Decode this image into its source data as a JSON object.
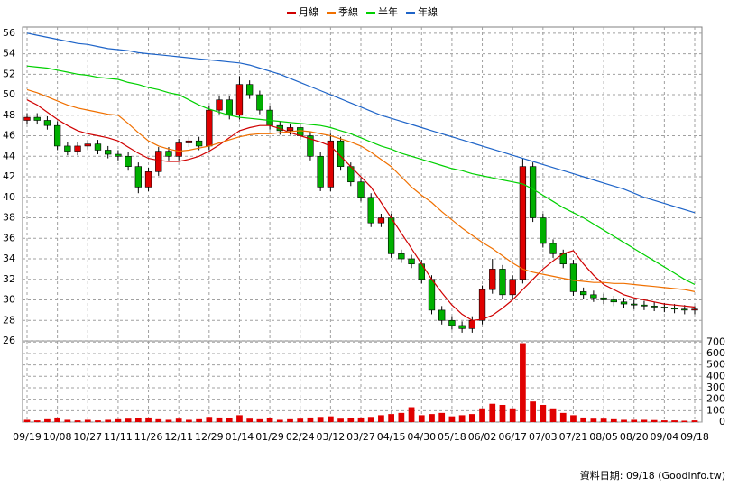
{
  "chart_data": {
    "type": "candlestick",
    "categories": [
      "09/19",
      null,
      null,
      "10/08",
      null,
      null,
      "10/27",
      null,
      null,
      "11/11",
      null,
      null,
      "11/26",
      null,
      null,
      "12/11",
      null,
      null,
      "12/29",
      null,
      null,
      "01/14",
      null,
      null,
      "01/29",
      null,
      null,
      "02/24",
      null,
      null,
      "03/12",
      null,
      null,
      "03/27",
      null,
      null,
      "04/15",
      null,
      null,
      "04/30",
      null,
      null,
      "05/18",
      null,
      null,
      "06/02",
      null,
      null,
      "06/17",
      null,
      null,
      "07/03",
      null,
      null,
      "07/21",
      null,
      null,
      "08/05",
      null,
      null,
      "08/20",
      null,
      null,
      "09/04",
      null,
      null,
      "09/18"
    ],
    "open": [
      47.5,
      47.8,
      47.5,
      47.0,
      45.0,
      44.5,
      45.0,
      45.2,
      44.6,
      44.2,
      44.0,
      43.0,
      41.0,
      42.5,
      44.5,
      44.0,
      45.3,
      45.5,
      45.0,
      48.5,
      49.5,
      48.0,
      51.0,
      50.0,
      48.5,
      47.0,
      46.5,
      46.8,
      46.0,
      44.0,
      41.0,
      45.5,
      43.0,
      41.5,
      40.0,
      37.5,
      38.0,
      34.5,
      34.0,
      33.5,
      32.0,
      29.0,
      28.0,
      27.5,
      27.2,
      28.0,
      31.0,
      33.0,
      30.5,
      32.0,
      43.0,
      38.0,
      35.5,
      34.5,
      33.5,
      30.8,
      30.5,
      30.2,
      30.0,
      29.8,
      29.6,
      29.5,
      29.4,
      29.3,
      29.2,
      29.1,
      29.0
    ],
    "high": [
      48.2,
      48.2,
      47.9,
      47.4,
      45.4,
      45.4,
      45.6,
      45.6,
      45.0,
      44.6,
      44.4,
      43.4,
      42.9,
      44.9,
      44.9,
      45.7,
      45.9,
      45.9,
      48.9,
      49.9,
      49.9,
      51.8,
      51.4,
      50.4,
      48.9,
      47.4,
      47.2,
      47.2,
      46.4,
      44.4,
      46.2,
      45.9,
      43.4,
      41.9,
      40.4,
      38.4,
      38.4,
      34.9,
      34.4,
      33.9,
      32.4,
      29.4,
      28.4,
      27.9,
      28.4,
      31.4,
      34.0,
      33.4,
      32.4,
      43.8,
      43.4,
      38.4,
      35.9,
      34.9,
      33.9,
      31.2,
      30.9,
      30.6,
      30.4,
      30.2,
      30.0,
      29.9,
      29.8,
      29.7,
      29.6,
      29.5,
      29.4
    ],
    "low": [
      47.1,
      47.1,
      46.6,
      44.6,
      44.1,
      44.1,
      44.6,
      44.2,
      43.8,
      43.6,
      42.6,
      40.4,
      40.6,
      42.1,
      43.6,
      43.6,
      44.9,
      44.6,
      44.6,
      48.1,
      47.6,
      47.6,
      49.6,
      48.1,
      46.6,
      46.1,
      46.1,
      45.6,
      43.6,
      40.6,
      40.6,
      42.6,
      41.1,
      39.6,
      37.1,
      37.1,
      34.1,
      33.6,
      33.1,
      31.6,
      28.6,
      27.6,
      27.1,
      26.8,
      26.8,
      27.6,
      30.6,
      30.1,
      30.1,
      31.6,
      37.6,
      35.1,
      34.1,
      33.1,
      30.4,
      30.1,
      29.8,
      29.6,
      29.4,
      29.2,
      29.1,
      29.0,
      28.9,
      28.8,
      28.7,
      28.6,
      28.6
    ],
    "close": [
      47.8,
      47.5,
      47.0,
      45.0,
      44.5,
      45.0,
      45.2,
      44.6,
      44.2,
      44.0,
      43.0,
      41.0,
      42.5,
      44.5,
      44.0,
      45.3,
      45.5,
      45.0,
      48.5,
      49.5,
      48.0,
      51.0,
      50.0,
      48.5,
      47.0,
      46.5,
      46.8,
      46.0,
      44.0,
      41.0,
      45.5,
      43.0,
      41.5,
      40.0,
      37.5,
      38.0,
      34.5,
      34.0,
      33.5,
      32.0,
      29.0,
      28.0,
      27.5,
      27.2,
      28.0,
      31.0,
      33.0,
      30.5,
      32.0,
      43.0,
      38.0,
      35.5,
      34.5,
      33.5,
      30.8,
      30.5,
      30.2,
      30.0,
      29.8,
      29.6,
      29.5,
      29.4,
      29.3,
      29.2,
      29.1,
      29.0,
      29.1
    ],
    "up_color": "#e00000",
    "down_color": "#00b000",
    "series": [
      {
        "name": "月線",
        "color": "#d00000",
        "values": [
          49.5,
          49.0,
          48.3,
          47.6,
          47.0,
          46.5,
          46.2,
          46.0,
          45.8,
          45.5,
          44.9,
          44.3,
          43.8,
          43.6,
          43.5,
          43.5,
          43.7,
          44.0,
          44.5,
          45.1,
          45.8,
          46.5,
          46.8,
          47.0,
          47.0,
          46.7,
          46.3,
          46.0,
          45.7,
          45.4,
          45.0,
          44.0,
          43.0,
          42.0,
          41.0,
          39.5,
          38.0,
          36.5,
          35.0,
          33.5,
          32.0,
          30.7,
          29.5,
          28.6,
          28.0,
          28.1,
          28.5,
          29.2,
          30.0,
          31.0,
          32.0,
          33.0,
          33.8,
          34.5,
          34.8,
          33.5,
          32.4,
          31.5,
          31.0,
          30.5,
          30.2,
          30.0,
          29.8,
          29.6,
          29.5,
          29.4,
          29.3
        ]
      },
      {
        "name": "季線",
        "color": "#f07000",
        "values": [
          50.5,
          50.2,
          49.8,
          49.4,
          49.0,
          48.7,
          48.5,
          48.3,
          48.1,
          48.0,
          47.2,
          46.3,
          45.5,
          45.0,
          44.7,
          44.5,
          44.6,
          44.8,
          45.0,
          45.3,
          45.6,
          45.9,
          46.1,
          46.2,
          46.2,
          46.3,
          46.4,
          46.5,
          46.4,
          46.2,
          46.0,
          45.7,
          45.4,
          45.0,
          44.4,
          43.7,
          43.0,
          42.0,
          41.0,
          40.2,
          39.5,
          38.6,
          37.8,
          37.0,
          36.3,
          35.6,
          35.0,
          34.3,
          33.6,
          33.0,
          32.7,
          32.5,
          32.3,
          32.1,
          31.9,
          31.8,
          31.7,
          31.7,
          31.6,
          31.6,
          31.5,
          31.4,
          31.3,
          31.2,
          31.1,
          31.0,
          30.8
        ]
      },
      {
        "name": "半年",
        "color": "#00d000",
        "values": [
          52.8,
          52.7,
          52.6,
          52.4,
          52.2,
          52.0,
          51.9,
          51.7,
          51.6,
          51.5,
          51.2,
          51.0,
          50.7,
          50.5,
          50.2,
          50.0,
          49.5,
          49.0,
          48.6,
          48.3,
          48.0,
          47.8,
          47.7,
          47.6,
          47.5,
          47.4,
          47.3,
          47.2,
          47.1,
          47.0,
          46.8,
          46.5,
          46.2,
          45.8,
          45.4,
          45.0,
          44.7,
          44.3,
          44.0,
          43.7,
          43.4,
          43.1,
          42.8,
          42.6,
          42.3,
          42.1,
          41.9,
          41.7,
          41.5,
          41.3,
          40.8,
          40.2,
          39.6,
          39.0,
          38.5,
          38.0,
          37.4,
          36.8,
          36.2,
          35.6,
          35.0,
          34.4,
          33.8,
          33.2,
          32.6,
          32.0,
          31.5
        ]
      },
      {
        "name": "年線",
        "color": "#1e64c8",
        "values": [
          56.0,
          55.8,
          55.6,
          55.4,
          55.2,
          55.0,
          54.9,
          54.7,
          54.5,
          54.4,
          54.3,
          54.1,
          54.0,
          53.9,
          53.8,
          53.7,
          53.6,
          53.5,
          53.4,
          53.3,
          53.2,
          53.1,
          52.9,
          52.6,
          52.3,
          52.0,
          51.6,
          51.2,
          50.8,
          50.4,
          50.0,
          49.6,
          49.2,
          48.8,
          48.4,
          48.0,
          47.7,
          47.4,
          47.1,
          46.8,
          46.5,
          46.2,
          45.9,
          45.6,
          45.3,
          45.0,
          44.7,
          44.4,
          44.1,
          43.8,
          43.5,
          43.2,
          42.9,
          42.6,
          42.3,
          42.0,
          41.7,
          41.4,
          41.1,
          40.8,
          40.4,
          40.0,
          39.7,
          39.4,
          39.1,
          38.8,
          38.5
        ]
      }
    ],
    "ylim": [
      26,
      56.6
    ],
    "yticks": [
      26,
      28,
      30,
      32,
      34,
      36,
      38,
      40,
      42,
      44,
      46,
      48,
      50,
      52,
      54,
      56
    ],
    "grid": true,
    "volume": {
      "color": "#e00000",
      "values": [
        20,
        15,
        25,
        40,
        20,
        15,
        20,
        15,
        20,
        25,
        30,
        35,
        40,
        25,
        20,
        30,
        20,
        25,
        45,
        40,
        35,
        60,
        30,
        25,
        35,
        20,
        25,
        30,
        40,
        45,
        50,
        30,
        35,
        40,
        45,
        60,
        70,
        80,
        130,
        60,
        70,
        80,
        50,
        60,
        70,
        120,
        160,
        150,
        120,
        690,
        180,
        150,
        120,
        80,
        60,
        40,
        30,
        30,
        25,
        20,
        20,
        20,
        18,
        15,
        15,
        12,
        15
      ],
      "ylim": [
        0,
        710
      ],
      "yticks": [
        0,
        100,
        200,
        300,
        400,
        500,
        600,
        700
      ]
    },
    "note": "資料日期: 09/18 (Goodinfo.tw)"
  }
}
